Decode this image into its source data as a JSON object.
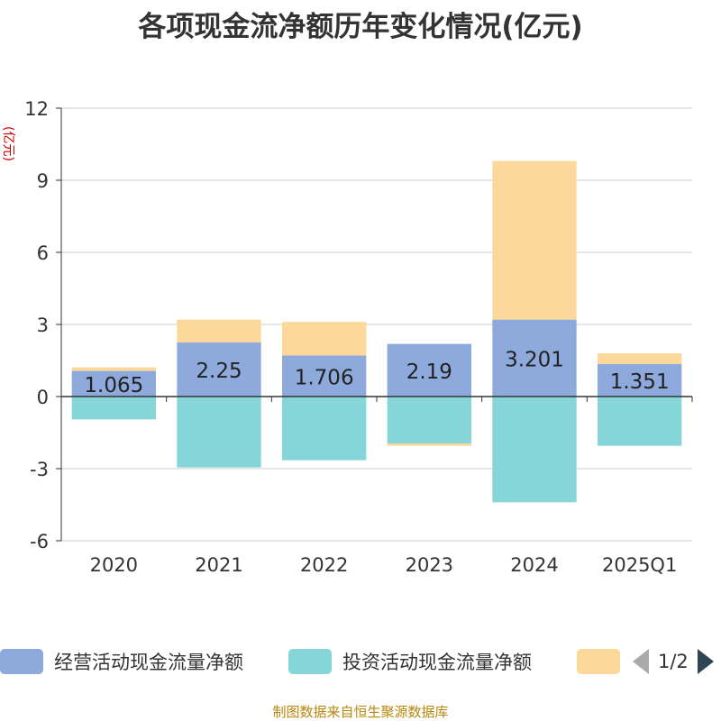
{
  "chart_data": {
    "type": "bar",
    "stacked": true,
    "title": "各项现金流净额历年变化情况(亿元)",
    "ylabel": "(亿元)",
    "ylim": [
      -6,
      12
    ],
    "yticks": [
      12,
      9,
      6,
      3,
      0,
      -3,
      -6
    ],
    "ytick_labels": [
      "12",
      "9",
      "6",
      "3",
      "0",
      "-3",
      "-6"
    ],
    "categories": [
      "2020",
      "2021",
      "2022",
      "2023",
      "2024",
      "2025Q1"
    ],
    "series": [
      {
        "name": "经营活动现金流量净额",
        "color": "#8eaadc",
        "values": [
          1.065,
          2.25,
          1.706,
          2.19,
          3.201,
          1.351
        ],
        "value_labels": [
          "1.065",
          "2.25",
          "1.706",
          "2.19",
          "3.201",
          "1.351"
        ]
      },
      {
        "name": "投资活动现金流量净额",
        "color": "#86d5d8",
        "values": [
          -0.95,
          -2.95,
          -2.65,
          -1.95,
          -4.4,
          -2.05
        ]
      },
      {
        "name": "",
        "color": "#fcd99b",
        "values": [
          0.15,
          0.95,
          1.4,
          -0.1,
          6.6,
          0.45
        ]
      }
    ],
    "legend_position": "bottom"
  },
  "legend": {
    "page_text": "1/2"
  },
  "source_note": "制图数据来自恒生聚源数据库"
}
